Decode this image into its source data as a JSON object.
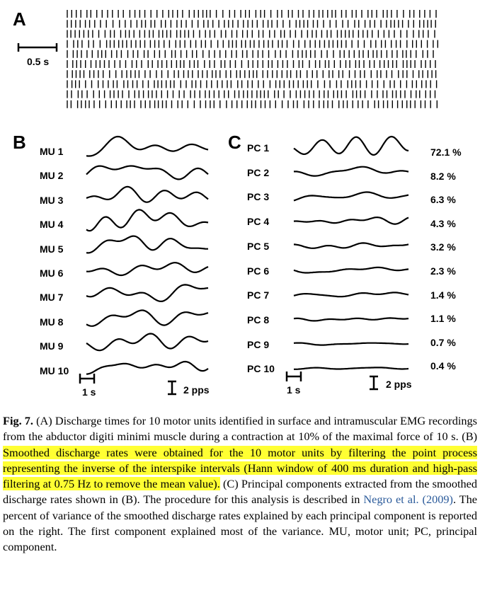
{
  "panels": {
    "a": {
      "letter": "A",
      "scale_label": "0.5 s",
      "raster_rows": 10
    },
    "b": {
      "letter": "B",
      "rows": [
        "MU 1",
        "MU 2",
        "MU 3",
        "MU 4",
        "MU 5",
        "MU 6",
        "MU 7",
        "MU 8",
        "MU 9",
        "MU 10"
      ],
      "time_scale": "1 s",
      "rate_scale": "2 pps"
    },
    "c": {
      "letter": "C",
      "rows": [
        "PC 1",
        "PC 2",
        "PC 3",
        "PC 4",
        "PC 5",
        "PC 6",
        "PC 7",
        "PC 8",
        "PC 9",
        "PC 10"
      ],
      "variance": [
        "72.1 %",
        "8.2 %",
        "6.3 %",
        "4.3 %",
        "3.2 %",
        "2.3 %",
        "1.4 %",
        "1.1 %",
        "0.7 %",
        "0.4 %"
      ],
      "time_scale": "1 s",
      "rate_scale": "2 pps"
    }
  },
  "caption": {
    "fig_label": "Fig. 7.",
    "part1": " (A) Discharge times for 10 motor units identified in surface and intramuscular EMG recordings from the abductor digiti minimi muscle during a contraction at 10% of the maximal force of 10 s. (B) ",
    "highlighted": "Smoothed discharge rates were obtained for the 10 motor units by filtering the point process representing the inverse of the interspike intervals (Hann window of 400 ms duration and high-pass filtering at 0.75 Hz to remove the mean value).",
    "part2": " (C) Principal components extracted from the smoothed discharge rates shown in (B). The procedure for this analysis is described in ",
    "citation": "Negro et al. (2009)",
    "part3": ". The percent of variance of the smoothed discharge rates explained by each principal component is reported on the right. The first component explained most of the variance. MU, motor unit; PC, principal component."
  }
}
